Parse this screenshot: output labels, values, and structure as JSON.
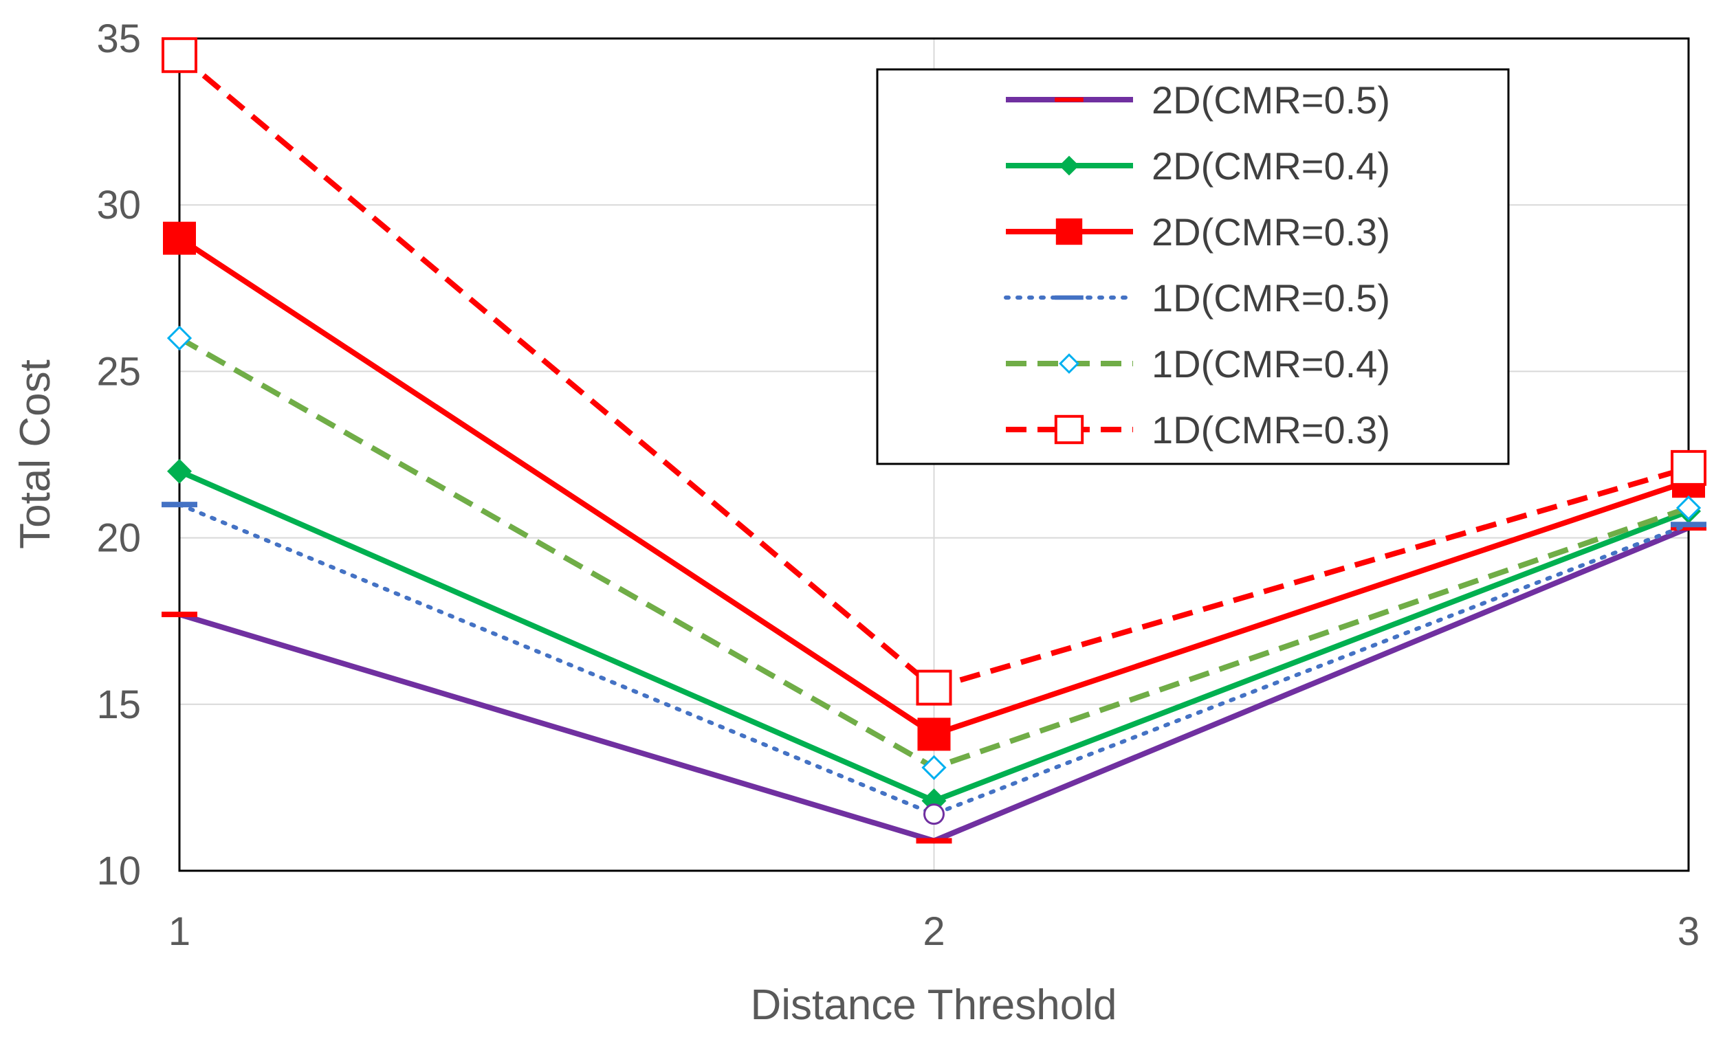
{
  "chart_data": {
    "type": "line",
    "title": "",
    "xlabel": "Distance Threshold",
    "ylabel": "Total Cost",
    "categories": [
      "1",
      "2",
      "3"
    ],
    "x": [
      1,
      2,
      3
    ],
    "xlim": [
      1,
      3
    ],
    "ylim": [
      10,
      35
    ],
    "yticks": [
      10,
      15,
      20,
      25,
      30,
      35
    ],
    "grid": true,
    "legend_position": "top-right",
    "series": [
      {
        "name": "2D(CMR=0.5)",
        "values": [
          17.7,
          10.9,
          20.3
        ],
        "color": "#7030a0",
        "dash": "solid",
        "marker": "dash"
      },
      {
        "name": "2D(CMR=0.4)",
        "values": [
          22.0,
          12.1,
          20.8
        ],
        "color": "#00b050",
        "dash": "solid",
        "marker": "diamond"
      },
      {
        "name": "2D(CMR=0.3)",
        "values": [
          29.0,
          14.1,
          21.7
        ],
        "color": "#ff0000",
        "dash": "solid",
        "marker": "square"
      },
      {
        "name": "1D(CMR=0.5)",
        "values": [
          21.0,
          11.7,
          20.4
        ],
        "color": "#4472c4",
        "dash": "dotted",
        "marker": "dash"
      },
      {
        "name": "1D(CMR=0.4)",
        "values": [
          26.0,
          13.1,
          20.9
        ],
        "color": "#70ad47",
        "dash": "dashed",
        "marker": "open-diamond"
      },
      {
        "name": "1D(CMR=0.3)",
        "values": [
          34.5,
          15.5,
          22.1
        ],
        "color": "#ff0000",
        "dash": "dashed",
        "marker": "open-square"
      }
    ]
  }
}
